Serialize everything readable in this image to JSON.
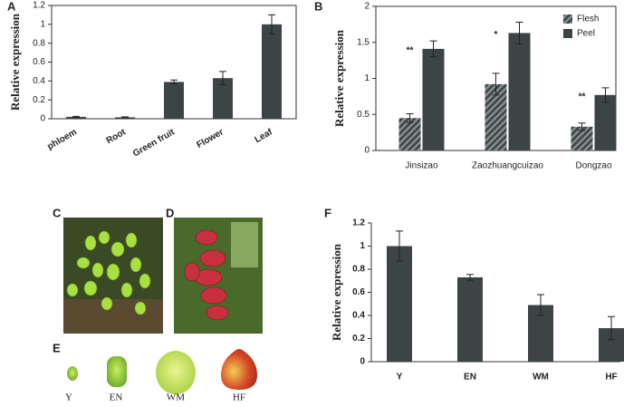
{
  "chart_data": [
    {
      "type": "bar",
      "panel": "A",
      "y_label": "Relative expression",
      "categories": [
        "phloem",
        "Root",
        "Green fruit",
        "Flower",
        "Leaf"
      ],
      "values": [
        0.02,
        0.015,
        0.39,
        0.43,
        1.0
      ],
      "errors": [
        0.005,
        0.005,
        0.02,
        0.07,
        0.1
      ],
      "color": "#3d4446",
      "tick_color": "#1f5a5a",
      "ylim": [
        0,
        1.2
      ],
      "yticks": [
        0,
        0.2,
        0.4,
        0.6,
        0.8,
        1,
        1.2
      ]
    },
    {
      "type": "bar",
      "panel": "B",
      "y_label": "Relative expression",
      "categories": [
        "Jinsizao",
        "Zaozhuangcuizao",
        "Dongzao"
      ],
      "series": [
        {
          "name": "Flesh",
          "color": "#4a4f52",
          "hatch": true,
          "values": [
            0.45,
            0.92,
            0.33
          ],
          "errors": [
            0.06,
            0.15,
            0.05
          ]
        },
        {
          "name": "Peel",
          "color": "#3d4446",
          "values": [
            1.41,
            1.63,
            0.77
          ],
          "errors": [
            0.11,
            0.15,
            0.1
          ]
        }
      ],
      "annotations": [
        "**",
        "*",
        "**"
      ],
      "legend": "upper right",
      "ylim": [
        0,
        2
      ],
      "yticks": [
        0,
        0.5,
        1,
        1.5,
        2
      ]
    },
    {
      "type": "bar",
      "panel": "F",
      "y_label": "Relative expression",
      "categories": [
        "Y",
        "EN",
        "WM",
        "HF"
      ],
      "values": [
        1.0,
        0.73,
        0.49,
        0.29
      ],
      "errors": [
        0.13,
        0.025,
        0.09,
        0.1
      ],
      "color": "#3d4446",
      "tick_color": "#222",
      "ylim": [
        0,
        1.2
      ],
      "yticks": [
        0,
        0.2,
        0.4,
        0.6,
        0.8,
        1,
        1.2
      ]
    }
  ],
  "photos": {
    "panels": [
      "C",
      "D",
      "E"
    ],
    "stages": [
      "Y",
      "EN",
      "WM",
      "HF"
    ]
  }
}
